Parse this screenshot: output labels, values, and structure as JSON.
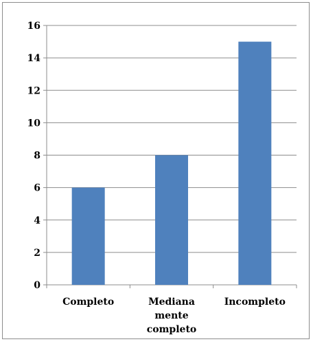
{
  "chart_data": {
    "type": "bar",
    "categories": [
      [
        "Completo"
      ],
      [
        "Mediana",
        "mente",
        "completo"
      ],
      [
        "Incompleto"
      ]
    ],
    "values": [
      6,
      8,
      15
    ],
    "ylim": [
      0,
      16
    ],
    "yticks": [
      0,
      2,
      4,
      6,
      8,
      10,
      12,
      14,
      16
    ],
    "grid": true,
    "bar_color": "#4f81bd",
    "grid_color": "#8c8c8c",
    "axis_color": "#8c8c8c",
    "title": "",
    "xlabel": "",
    "ylabel": ""
  }
}
